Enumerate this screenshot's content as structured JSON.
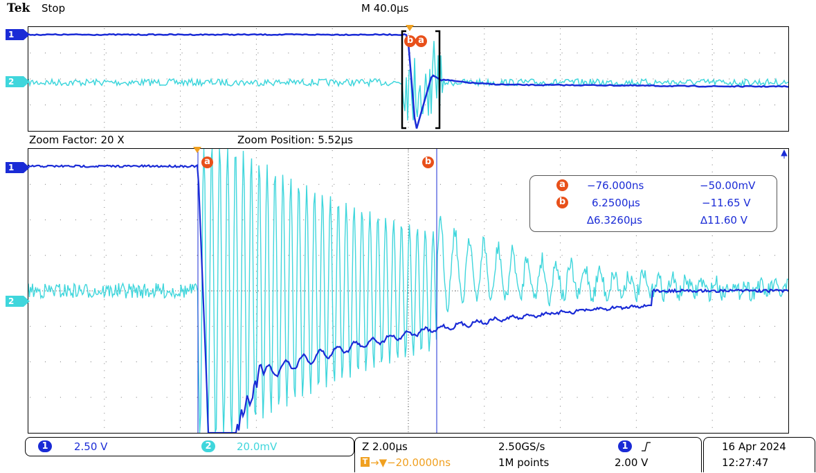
{
  "header": {
    "brand": "Tek",
    "state": "Stop",
    "timebase": "M 40.0µs"
  },
  "zoom": {
    "factor_label": "Zoom Factor: 20 X",
    "position_label": "Zoom Position: 5.52µs"
  },
  "markers": {
    "ch1": "1",
    "ch2": "2"
  },
  "cursors": {
    "a_label": "a",
    "b_label": "b",
    "ab_label": "ba",
    "a_time": "−76.000ns",
    "a_volt": "−50.00mV",
    "b_time": "6.2500µs",
    "b_volt": "−11.65 V",
    "delta_time": "∆6.3260µs",
    "delta_volt": "∆11.60 V"
  },
  "status": {
    "ch1_num": "1",
    "ch1_scale": "2.50 V",
    "ch2_num": "2",
    "ch2_scale": "20.0mV",
    "zoom_scale": "Z 2.00µs",
    "sample_rate": "2.50GS/s",
    "trigger_pos": "→▼−20.0000ns",
    "record_length": "1M points",
    "trigger_ch": "1",
    "trigger_slope_icon": "rising-edge-icon",
    "trigger_level": "2.00 V",
    "date": "16 Apr  2024",
    "time": "12:27:47"
  },
  "colors": {
    "ch1": "#1a2bd6",
    "ch2": "#3fd6dc",
    "cursor": "#e8501a",
    "trigger": "#f0a020"
  }
}
